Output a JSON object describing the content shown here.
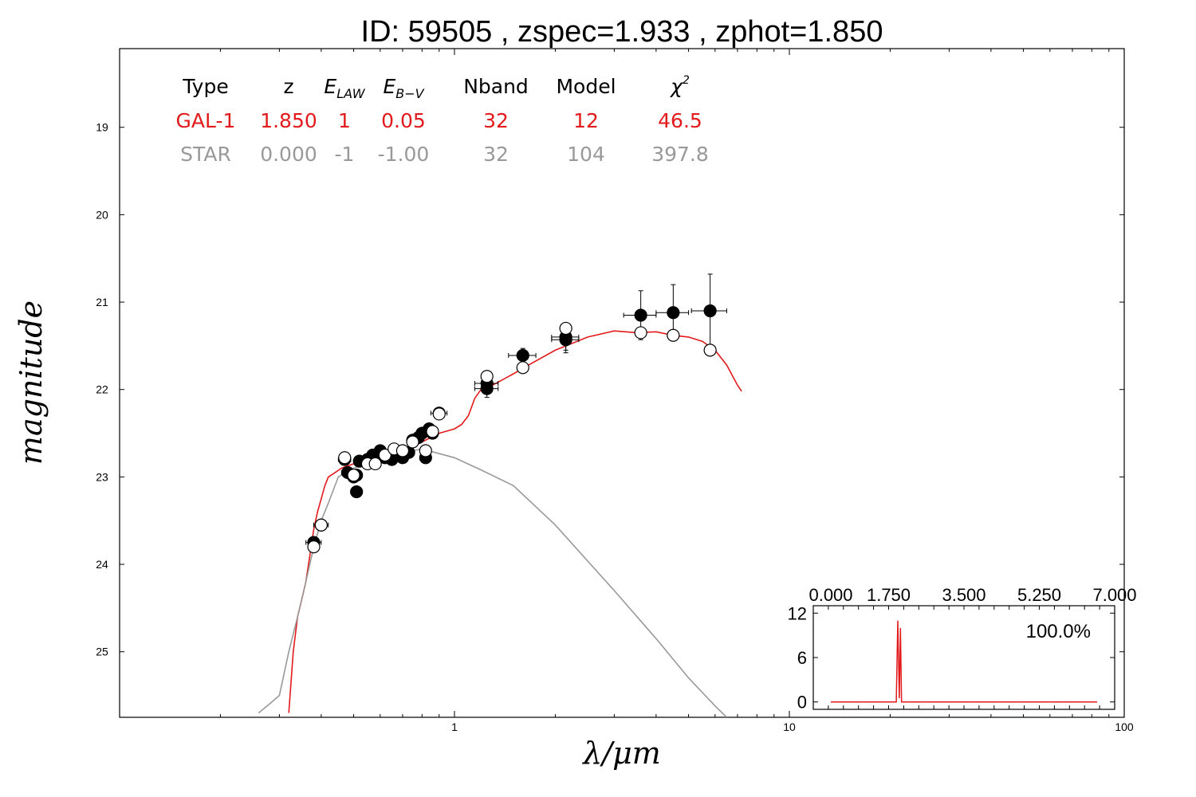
{
  "chart_data": {
    "type": "scatter",
    "title": "ID:  59505 , zspec=1.933 , zphot=1.850",
    "xlabel": "λ/μm",
    "ylabel": "magnitude",
    "x_scale": "log",
    "xlim": [
      0.1,
      100
    ],
    "ylim": [
      25.75,
      18.1
    ],
    "x_ticks": [
      1,
      10,
      100
    ],
    "x_tick_labels": [
      "1",
      "10",
      "100"
    ],
    "y_ticks": [
      19,
      20,
      21,
      22,
      23,
      24,
      25
    ],
    "y_tick_labels": [
      "19",
      "20",
      "21",
      "22",
      "23",
      "24",
      "25"
    ],
    "colors": {
      "galaxy": "#e31a1c",
      "star": "#999999",
      "points": "#000000",
      "axes": "#000000"
    },
    "table": {
      "headers": [
        "Type",
        "z",
        "E_LAW",
        "E_B−V",
        "Nband",
        "Model",
        "χ²"
      ],
      "rows": [
        {
          "color": "#e31a1c",
          "cells": [
            "GAL-1",
            "1.850",
            "1",
            "0.05",
            "32",
            "12",
            "46.5"
          ]
        },
        {
          "color": "#999999",
          "cells": [
            "STAR",
            "0.000",
            "-1",
            "-1.00",
            "32",
            "104",
            "397.8"
          ]
        }
      ]
    },
    "series": [
      {
        "kind": "line",
        "color": "#e31a1c",
        "x": [
          0.32,
          0.33,
          0.34,
          0.35,
          0.36,
          0.37,
          0.38,
          0.39,
          0.4,
          0.41,
          0.42,
          0.44,
          0.46,
          0.5,
          0.55,
          0.6,
          0.7,
          0.8,
          0.9,
          1.0,
          1.05,
          1.1,
          1.15,
          1.2,
          1.3,
          1.5,
          1.7,
          2.0,
          2.5,
          3.0,
          3.5,
          4.0,
          4.5,
          5.0,
          5.5,
          6.0,
          6.5,
          7.0,
          7.2
        ],
        "y": [
          25.7,
          25.0,
          24.6,
          24.4,
          24.2,
          23.9,
          23.6,
          23.4,
          23.25,
          23.1,
          23.0,
          22.95,
          22.9,
          22.85,
          22.82,
          22.78,
          22.72,
          22.6,
          22.5,
          22.45,
          22.4,
          22.3,
          22.1,
          22.0,
          21.95,
          21.82,
          21.7,
          21.55,
          21.4,
          21.33,
          21.35,
          21.34,
          21.38,
          21.4,
          21.45,
          21.55,
          21.72,
          21.95,
          22.02
        ]
      },
      {
        "kind": "line",
        "color": "#999999",
        "x": [
          0.26,
          0.28,
          0.3,
          0.32,
          0.34,
          0.36,
          0.38,
          0.4,
          0.42,
          0.45,
          0.5,
          0.6,
          0.7,
          0.8,
          1.0,
          1.2,
          1.5,
          2.0,
          3.0,
          4.0,
          5.0,
          6.0,
          6.5
        ],
        "y": [
          25.7,
          25.6,
          25.5,
          25.0,
          24.6,
          24.2,
          23.8,
          23.5,
          23.3,
          23.0,
          22.9,
          22.8,
          22.72,
          22.68,
          22.78,
          22.92,
          23.1,
          23.55,
          24.3,
          24.85,
          25.3,
          25.62,
          25.75
        ]
      },
      {
        "kind": "points",
        "name": "observed",
        "fill": "#000000",
        "x": [
          0.38,
          0.4,
          0.47,
          0.48,
          0.5,
          0.51,
          0.51,
          0.52,
          0.55,
          0.57,
          0.58,
          0.6,
          0.62,
          0.65,
          0.67,
          0.7,
          0.73,
          0.75,
          0.78,
          0.8,
          0.82,
          0.84,
          0.86,
          0.9,
          1.25,
          1.25,
          1.6,
          2.15,
          2.15,
          3.6,
          4.5,
          5.8
        ],
        "y": [
          23.75,
          23.55,
          22.8,
          22.95,
          23.0,
          22.98,
          23.17,
          22.82,
          22.8,
          22.75,
          22.78,
          22.7,
          22.78,
          22.8,
          22.7,
          22.78,
          22.72,
          22.58,
          22.55,
          22.5,
          22.78,
          22.45,
          22.5,
          22.27,
          21.93,
          21.99,
          21.61,
          21.4,
          21.43,
          21.15,
          21.12,
          21.1
        ],
        "xerr": [
          0.02,
          0.02,
          0.02,
          0.02,
          0.02,
          0.02,
          0.02,
          0.02,
          0.02,
          0.02,
          0.02,
          0.02,
          0.02,
          0.02,
          0.02,
          0.02,
          0.02,
          0.02,
          0.02,
          0.02,
          0.02,
          0.02,
          0.03,
          0.05,
          0.1,
          0.1,
          0.15,
          0.2,
          0.2,
          0.4,
          0.5,
          0.7
        ],
        "yerr": [
          0.05,
          0.05,
          0.03,
          0.03,
          0.03,
          0.03,
          0.03,
          0.03,
          0.03,
          0.03,
          0.03,
          0.03,
          0.03,
          0.03,
          0.03,
          0.03,
          0.03,
          0.03,
          0.03,
          0.03,
          0.05,
          0.05,
          0.05,
          0.05,
          0.1,
          0.1,
          0.08,
          0.15,
          0.15,
          0.28,
          0.32,
          0.42
        ]
      },
      {
        "kind": "points",
        "name": "model",
        "fill": "#ffffff",
        "x": [
          0.38,
          0.4,
          0.47,
          0.5,
          0.55,
          0.58,
          0.62,
          0.66,
          0.7,
          0.75,
          0.82,
          0.86,
          0.9,
          1.25,
          1.6,
          2.15,
          3.6,
          4.5,
          5.8
        ],
        "y": [
          23.8,
          23.55,
          22.78,
          22.98,
          22.85,
          22.85,
          22.75,
          22.68,
          22.7,
          22.6,
          22.7,
          22.48,
          22.28,
          21.85,
          21.75,
          21.3,
          21.35,
          21.38,
          21.55
        ],
        "xerr": [],
        "yerr": []
      }
    ],
    "inset": {
      "type": "line",
      "xlim": [
        0,
        7
      ],
      "ylim": [
        -1,
        13
      ],
      "x_ticks": [
        0,
        1.75,
        3.5,
        5.25,
        7.0
      ],
      "x_tick_labels": [
        "0.000",
        "1.750",
        "3.500",
        "5.250",
        "7.000"
      ],
      "y_ticks": [
        0,
        6,
        12
      ],
      "y_tick_labels": [
        "0",
        "6",
        "12"
      ],
      "annotation": "100.0%",
      "color": "#e31a1c",
      "x": [
        0.0,
        1.6,
        1.72,
        1.76,
        1.8,
        1.83,
        1.86,
        1.9,
        7.0
      ],
      "y": [
        0,
        0,
        0,
        11,
        0.5,
        10,
        0,
        0,
        0
      ]
    }
  }
}
